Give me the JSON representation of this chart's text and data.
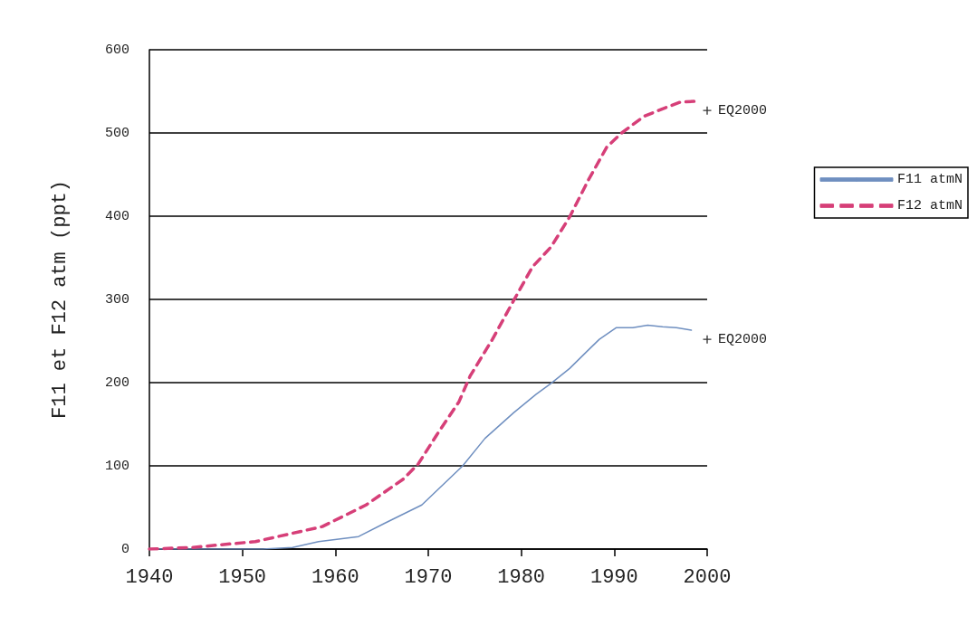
{
  "chart_data": {
    "type": "line",
    "ylabel": "F11 et F12 atm (ppt)",
    "xlim": [
      1940,
      2000
    ],
    "xticks": [
      1940,
      1950,
      1960,
      1970,
      1980,
      1990,
      2000
    ],
    "ylim": [
      0,
      600
    ],
    "yticks": [
      0,
      100,
      200,
      300,
      400,
      500,
      600
    ],
    "grid": "y",
    "legend": "right",
    "marker": "none",
    "series": [
      {
        "name": "F11 atmN",
        "color": "#6f8fc0",
        "line_style": "solid",
        "x": [
          1940,
          1952.2,
          1955.4,
          1958.2,
          1962.5,
          1965.3,
          1969.3,
          1973.7,
          1976.1,
          1979.2,
          1981.6,
          1983.2,
          1985.2,
          1987.2,
          1988.4,
          1990.2,
          1992,
          1993.6,
          1995.2,
          1996.7,
          1998.3
        ],
        "values": [
          0,
          0,
          2,
          9,
          15,
          31,
          53,
          100,
          133,
          164,
          186,
          199,
          217,
          239,
          252,
          266,
          266,
          269,
          267,
          266,
          263
        ]
      },
      {
        "name": "F12 atmN",
        "color": "#d63f78",
        "line_style": "dashed",
        "x": [
          1940,
          1944.7,
          1951.4,
          1958.6,
          1963.3,
          1967.3,
          1968.9,
          1970.9,
          1973.3,
          1974.5,
          1976.9,
          1979.2,
          1981.2,
          1983.2,
          1985.2,
          1987.2,
          1989.2,
          1990.8,
          1993.2,
          1995.2,
          1997.1,
          1998.7
        ],
        "values": [
          0,
          2,
          9,
          27,
          53,
          84,
          102,
          137,
          177,
          208,
          252,
          299,
          339,
          363,
          399,
          443,
          483,
          500,
          520,
          529,
          537,
          538
        ]
      },
      {
        "type": "scatter",
        "marker": "cross",
        "color": "#000000",
        "x": [
          2000,
          2000
        ],
        "values": [
          527,
          252
        ]
      }
    ],
    "annotations": [
      {
        "text": "EQ2000",
        "x": 2000,
        "y": 527
      },
      {
        "text": "EQ2000",
        "x": 2000,
        "y": 252
      }
    ]
  }
}
